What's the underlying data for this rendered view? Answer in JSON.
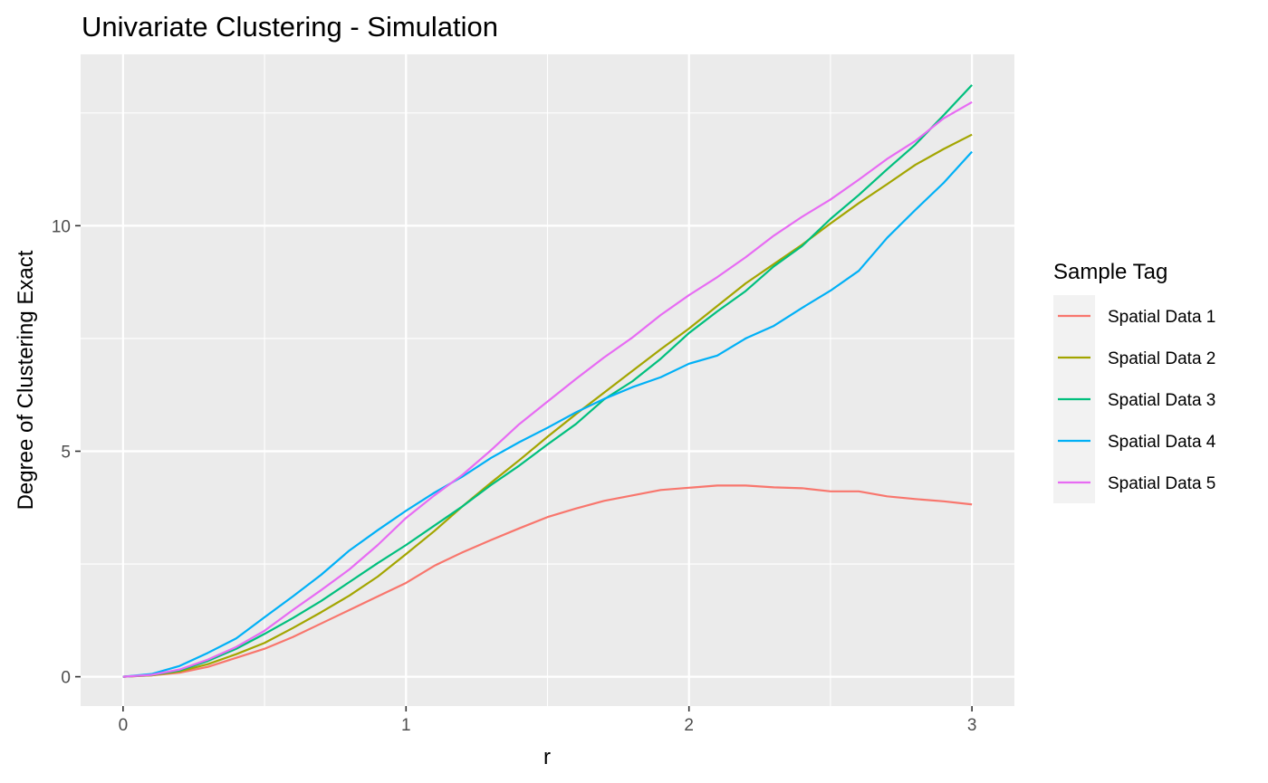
{
  "chart_data": {
    "type": "line",
    "title": "Univariate Clustering - Simulation",
    "xlabel": "r",
    "ylabel": "Degree of Clustering Exact",
    "xlim": [
      -0.15,
      3.15
    ],
    "ylim": [
      -0.65,
      13.8
    ],
    "x_ticks": [
      0,
      1,
      2,
      3
    ],
    "x_tick_labels": [
      "0",
      "1",
      "2",
      "3"
    ],
    "x_minor": [
      0.5,
      1.5,
      2.5
    ],
    "y_ticks": [
      0,
      5,
      10
    ],
    "y_tick_labels": [
      "0",
      "5",
      "10"
    ],
    "y_minor": [
      2.5,
      7.5,
      12.5
    ],
    "grid": true,
    "legend": {
      "title": "Sample Tag",
      "position": "right"
    },
    "x": [
      0,
      0.1,
      0.2,
      0.3,
      0.4,
      0.5,
      0.6,
      0.7,
      0.8,
      0.9,
      1.0,
      1.1,
      1.2,
      1.3,
      1.4,
      1.5,
      1.6,
      1.7,
      1.8,
      1.9,
      2.0,
      2.1,
      2.2,
      2.3,
      2.4,
      2.5,
      2.6,
      2.7,
      2.8,
      2.9,
      3.0
    ],
    "series": [
      {
        "name": "Spatial Data 1",
        "color": "#F8766D",
        "values": [
          0,
          0.03,
          0.09,
          0.22,
          0.42,
          0.62,
          0.88,
          1.18,
          1.48,
          1.78,
          2.08,
          2.46,
          2.76,
          3.03,
          3.29,
          3.54,
          3.73,
          3.9,
          4.02,
          4.14,
          4.19,
          4.24,
          4.24,
          4.2,
          4.18,
          4.11,
          4.11,
          4.0,
          3.94,
          3.89,
          3.82
        ]
      },
      {
        "name": "Spatial Data 2",
        "color": "#A3A500",
        "values": [
          0,
          0.03,
          0.12,
          0.28,
          0.5,
          0.75,
          1.08,
          1.43,
          1.8,
          2.22,
          2.72,
          3.23,
          3.78,
          4.3,
          4.8,
          5.32,
          5.82,
          6.3,
          6.78,
          7.26,
          7.72,
          8.22,
          8.72,
          9.15,
          9.58,
          10.05,
          10.5,
          10.92,
          11.35,
          11.7,
          12.02
        ]
      },
      {
        "name": "Spatial Data 3",
        "color": "#00BF7D",
        "values": [
          0,
          0.04,
          0.14,
          0.35,
          0.62,
          0.95,
          1.3,
          1.68,
          2.1,
          2.52,
          2.92,
          3.35,
          3.78,
          4.25,
          4.68,
          5.15,
          5.6,
          6.15,
          6.55,
          7.05,
          7.62,
          8.1,
          8.55,
          9.1,
          9.55,
          10.15,
          10.68,
          11.25,
          11.8,
          12.45,
          13.12
        ]
      },
      {
        "name": "Spatial Data 4",
        "color": "#00B0F6",
        "values": [
          0,
          0.06,
          0.24,
          0.53,
          0.85,
          1.32,
          1.78,
          2.26,
          2.8,
          3.25,
          3.68,
          4.08,
          4.44,
          4.85,
          5.2,
          5.52,
          5.86,
          6.16,
          6.42,
          6.64,
          6.94,
          7.12,
          7.5,
          7.78,
          8.18,
          8.56,
          9.0,
          9.73,
          10.35,
          10.95,
          11.64
        ]
      },
      {
        "name": "Spatial Data 5",
        "color": "#E76BF3",
        "values": [
          0,
          0.04,
          0.16,
          0.38,
          0.66,
          1.02,
          1.48,
          1.92,
          2.38,
          2.92,
          3.52,
          4.02,
          4.48,
          5.02,
          5.6,
          6.1,
          6.6,
          7.08,
          7.52,
          8.02,
          8.46,
          8.86,
          9.3,
          9.78,
          10.2,
          10.58,
          11.02,
          11.48,
          11.88,
          12.38,
          12.74
        ]
      }
    ]
  }
}
